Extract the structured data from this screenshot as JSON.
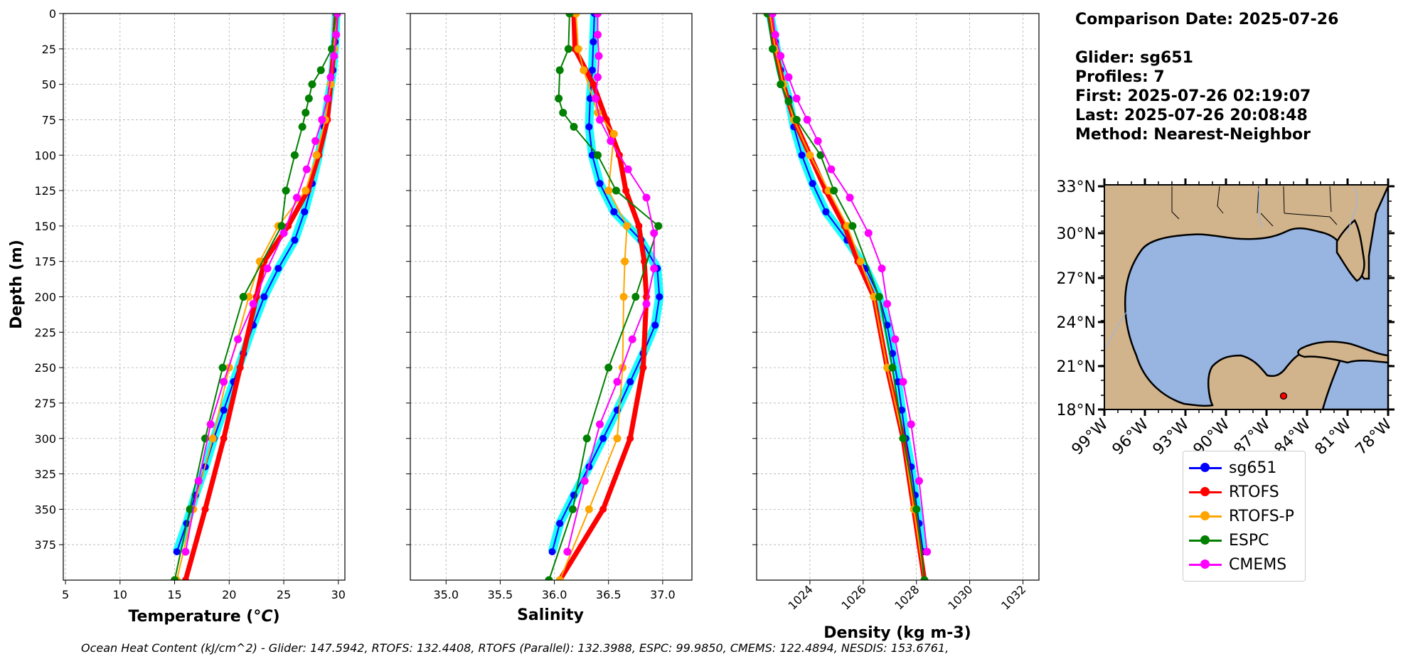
{
  "info": {
    "comparison_date": "Comparison Date: 2025-07-26",
    "glider": "Glider: sg651",
    "profiles": "Profiles: 7",
    "first": "First: 2025-07-26 02:19:07",
    "last": "Last: 2025-07-26 20:08:48",
    "method": "Method: Nearest-Neighbor"
  },
  "footer": "Ocean Heat Content (kJ/cm^2) - Glider: 147.5942,  RTOFS: 132.4408,  RTOFS (Parallel): 132.3988,  ESPC: 99.9850,  CMEMS: 122.4894,  NESDIS: 153.6761,",
  "legend": [
    {
      "name": "sg651",
      "color": "#0000ff"
    },
    {
      "name": "RTOFS",
      "color": "#ff0000"
    },
    {
      "name": "RTOFS-P",
      "color": "#ffa500"
    },
    {
      "name": "ESPC",
      "color": "#008000"
    },
    {
      "name": "CMEMS",
      "color": "#ff00ff"
    }
  ],
  "chart_data": [
    {
      "type": "line",
      "xlabel": "Temperature (oC)",
      "ylabel": "Depth (m)",
      "xlim": [
        4.8,
        30.6
      ],
      "ylim": [
        400,
        0
      ],
      "xticks": [
        5,
        10,
        15,
        20,
        25,
        30
      ],
      "yticks": [
        0,
        25,
        50,
        75,
        100,
        125,
        150,
        175,
        200,
        225,
        250,
        275,
        300,
        325,
        350,
        375
      ],
      "grid": true,
      "series": [
        {
          "name": "sg651",
          "color": "#0000ff",
          "x": [
            29.8,
            29.7,
            29.5,
            29.1,
            28.7,
            28.2,
            27.6,
            26.9,
            26.0,
            24.5,
            23.2,
            22.2,
            21.3,
            20.4,
            19.5,
            18.6,
            17.8,
            16.9,
            16.1,
            15.2
          ],
          "y": [
            0,
            20,
            40,
            60,
            80,
            100,
            120,
            140,
            160,
            180,
            200,
            220,
            240,
            260,
            280,
            300,
            320,
            340,
            360,
            380
          ]
        },
        {
          "name": "RTOFS",
          "color": "#ff0000",
          "x": [
            29.8,
            29.6,
            29.3,
            29.0,
            28.2,
            27.2,
            25.4,
            23.2,
            22.5,
            21.0,
            19.5,
            17.8,
            16.0
          ],
          "y": [
            0,
            25,
            50,
            75,
            100,
            125,
            150,
            175,
            200,
            250,
            300,
            350,
            400
          ]
        },
        {
          "name": "RTOFS-P",
          "color": "#ffa500",
          "x": [
            29.8,
            29.6,
            29.3,
            28.8,
            28.0,
            27.0,
            24.5,
            22.8,
            21.8,
            20.0,
            18.5,
            16.7,
            15.2
          ],
          "y": [
            0,
            25,
            50,
            75,
            100,
            125,
            150,
            175,
            200,
            250,
            300,
            350,
            400
          ]
        },
        {
          "name": "ESPC",
          "color": "#008000",
          "x": [
            29.8,
            29.4,
            28.4,
            27.6,
            27.3,
            27.0,
            26.7,
            26.0,
            25.2,
            24.8,
            21.3,
            19.4,
            17.8,
            16.4,
            15.0
          ],
          "y": [
            0,
            25,
            40,
            50,
            60,
            70,
            80,
            100,
            125,
            150,
            200,
            250,
            300,
            350,
            400
          ]
        },
        {
          "name": "CMEMS",
          "color": "#ff00ff",
          "x": [
            29.9,
            29.8,
            29.6,
            29.3,
            29.0,
            28.5,
            27.9,
            27.1,
            26.2,
            25.0,
            23.5,
            22.2,
            20.8,
            19.5,
            18.3,
            17.2,
            16.0
          ],
          "y": [
            0,
            15,
            30,
            45,
            60,
            75,
            90,
            110,
            130,
            155,
            180,
            205,
            230,
            260,
            290,
            330,
            380
          ]
        }
      ]
    },
    {
      "type": "line",
      "xlabel": "Salinity",
      "xlim": [
        34.67,
        37.27
      ],
      "ylim": [
        400,
        0
      ],
      "xticks": [
        35.0,
        35.5,
        36.0,
        36.5,
        37.0
      ],
      "grid": true,
      "series": [
        {
          "name": "sg651",
          "color": "#0000ff",
          "x": [
            36.37,
            36.36,
            36.35,
            36.33,
            36.32,
            36.35,
            36.42,
            36.55,
            36.8,
            36.95,
            36.97,
            36.93,
            36.82,
            36.7,
            36.58,
            36.45,
            36.32,
            36.18,
            36.05,
            35.98
          ],
          "y": [
            0,
            20,
            40,
            60,
            80,
            100,
            120,
            140,
            160,
            180,
            200,
            220,
            240,
            260,
            280,
            300,
            320,
            340,
            360,
            380
          ]
        },
        {
          "name": "RTOFS",
          "color": "#ff0000",
          "x": [
            36.18,
            36.19,
            36.36,
            36.48,
            36.6,
            36.66,
            36.78,
            36.83,
            36.85,
            36.82,
            36.7,
            36.45,
            36.05
          ],
          "y": [
            0,
            25,
            50,
            75,
            100,
            125,
            150,
            175,
            200,
            250,
            300,
            350,
            400
          ]
        },
        {
          "name": "RTOFS-P",
          "color": "#ffa500",
          "x": [
            36.2,
            36.22,
            36.27,
            36.4,
            36.55,
            36.5,
            36.67,
            36.65,
            36.64,
            36.63,
            36.58,
            36.32,
            36.05
          ],
          "y": [
            0,
            25,
            40,
            70,
            85,
            125,
            150,
            175,
            200,
            250,
            300,
            350,
            400
          ]
        },
        {
          "name": "ESPC",
          "color": "#008000",
          "x": [
            36.14,
            36.13,
            36.05,
            36.04,
            36.08,
            36.18,
            36.4,
            36.57,
            36.96,
            36.75,
            36.5,
            36.3,
            36.17,
            35.95
          ],
          "y": [
            0,
            25,
            40,
            60,
            70,
            80,
            100,
            125,
            150,
            200,
            250,
            300,
            350,
            400
          ]
        },
        {
          "name": "CMEMS",
          "color": "#ff00ff",
          "x": [
            36.4,
            36.4,
            36.41,
            36.4,
            36.38,
            36.42,
            36.52,
            36.68,
            36.85,
            36.92,
            36.92,
            36.85,
            36.72,
            36.58,
            36.42,
            36.28,
            36.12
          ],
          "y": [
            0,
            15,
            30,
            45,
            60,
            75,
            90,
            110,
            130,
            155,
            180,
            205,
            230,
            260,
            290,
            330,
            380
          ]
        }
      ]
    },
    {
      "type": "line",
      "xlabel": "Density (kg m-3)",
      "xlim": [
        1022.0,
        1032.6
      ],
      "ylim": [
        400,
        0
      ],
      "xticks": [
        1024,
        1026,
        1028,
        1030,
        1032
      ],
      "grid": true,
      "series": [
        {
          "name": "sg651",
          "color": "#0000ff",
          "x": [
            1022.5,
            1022.7,
            1022.9,
            1023.2,
            1023.4,
            1023.7,
            1024.1,
            1024.6,
            1025.4,
            1026.1,
            1026.6,
            1026.9,
            1027.1,
            1027.3,
            1027.45,
            1027.6,
            1027.8,
            1027.95,
            1028.1,
            1028.25
          ],
          "y": [
            0,
            20,
            40,
            60,
            80,
            100,
            120,
            140,
            160,
            180,
            200,
            220,
            240,
            260,
            280,
            300,
            320,
            340,
            360,
            380
          ]
        },
        {
          "name": "RTOFS",
          "color": "#ff0000",
          "x": [
            1022.5,
            1022.7,
            1023.0,
            1023.4,
            1024.0,
            1024.6,
            1025.3,
            1025.8,
            1026.4,
            1026.9,
            1027.5,
            1027.9,
            1028.3
          ],
          "y": [
            0,
            25,
            50,
            75,
            100,
            125,
            150,
            175,
            200,
            250,
            300,
            350,
            400
          ]
        },
        {
          "name": "RTOFS-P",
          "color": "#ffa500",
          "x": [
            1022.5,
            1022.7,
            1023.0,
            1023.4,
            1024.0,
            1024.7,
            1025.4,
            1025.9,
            1026.4,
            1026.9,
            1027.5,
            1027.9,
            1028.3
          ],
          "y": [
            0,
            25,
            50,
            75,
            100,
            125,
            150,
            175,
            200,
            250,
            300,
            350,
            400
          ]
        },
        {
          "name": "ESPC",
          "color": "#008000",
          "x": [
            1022.4,
            1022.6,
            1022.9,
            1023.2,
            1023.5,
            1024.4,
            1024.9,
            1025.6,
            1026.6,
            1027.1,
            1027.5,
            1028.0,
            1028.3
          ],
          "y": [
            0,
            25,
            50,
            62,
            75,
            100,
            125,
            150,
            200,
            250,
            300,
            350,
            400
          ]
        },
        {
          "name": "CMEMS",
          "color": "#ff00ff",
          "x": [
            1022.6,
            1022.7,
            1022.9,
            1023.2,
            1023.5,
            1023.9,
            1024.3,
            1024.8,
            1025.5,
            1026.2,
            1026.7,
            1026.9,
            1027.2,
            1027.5,
            1027.8,
            1028.1,
            1028.4
          ],
          "y": [
            0,
            15,
            30,
            45,
            60,
            75,
            90,
            110,
            130,
            155,
            180,
            205,
            230,
            260,
            290,
            330,
            380
          ]
        }
      ]
    },
    {
      "type": "map",
      "lat_ticks": [
        "33°N",
        "30°N",
        "27°N",
        "24°N",
        "21°N",
        "18°N"
      ],
      "lon_ticks": [
        "99°W",
        "96°W",
        "93°W",
        "90°W",
        "87°W",
        "84°W",
        "81°W",
        "78°W"
      ],
      "extent": {
        "lon": [
          -98,
          -78
        ],
        "lat": [
          18,
          33
        ]
      },
      "marker": {
        "lon": -85.3,
        "lat": 18.9,
        "color": "#ff0000"
      }
    }
  ]
}
